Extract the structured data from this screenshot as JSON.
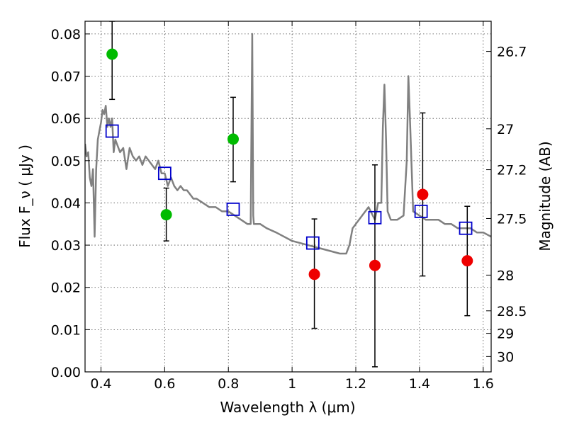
{
  "chart_data": {
    "type": "scatter",
    "xlabel": "Wavelength  λ (μm)",
    "ylabel": "Flux  F_ν ( μJy )",
    "ylabel_right": "Magnitude (AB)",
    "xlim": [
      0.35,
      1.625
    ],
    "ylim": [
      0.0,
      0.083
    ],
    "grid": true,
    "x_ticks": [
      0.4,
      0.6,
      0.8,
      1.0,
      1.2,
      1.4,
      1.6
    ],
    "x_tick_labels": [
      "0.4",
      "0.6",
      "0.8",
      "1",
      "1.2",
      "1.4",
      "1.6"
    ],
    "y_ticks": [
      0.0,
      0.01,
      0.02,
      0.03,
      0.04,
      0.05,
      0.06,
      0.07,
      0.08
    ],
    "y_tick_labels": [
      "0.00",
      "0.01",
      "0.02",
      "0.03",
      "0.04",
      "0.05",
      "0.06",
      "0.07",
      "0.08"
    ],
    "right_ticks": [
      {
        "label": "26.7",
        "mag": 26.7
      },
      {
        "label": "27",
        "mag": 27.0
      },
      {
        "label": "27.2",
        "mag": 27.2
      },
      {
        "label": "27.5",
        "mag": 27.5
      },
      {
        "label": "28",
        "mag": 28.0
      },
      {
        "label": "28.5",
        "mag": 28.5
      },
      {
        "label": "29",
        "mag": 29.0
      },
      {
        "label": "30",
        "mag": 30.0
      }
    ],
    "series": [
      {
        "kind": "line",
        "color": "#808080",
        "x": [
          0.35,
          0.355,
          0.36,
          0.365,
          0.37,
          0.375,
          0.38,
          0.385,
          0.39,
          0.395,
          0.4,
          0.405,
          0.41,
          0.415,
          0.42,
          0.425,
          0.43,
          0.435,
          0.44,
          0.445,
          0.45,
          0.46,
          0.47,
          0.48,
          0.49,
          0.5,
          0.51,
          0.52,
          0.53,
          0.54,
          0.55,
          0.56,
          0.57,
          0.58,
          0.59,
          0.6,
          0.61,
          0.62,
          0.63,
          0.64,
          0.65,
          0.66,
          0.67,
          0.68,
          0.69,
          0.7,
          0.72,
          0.74,
          0.76,
          0.78,
          0.8,
          0.82,
          0.84,
          0.86,
          0.87,
          0.875,
          0.878,
          0.88,
          0.885,
          0.9,
          0.92,
          0.95,
          1.0,
          1.05,
          1.1,
          1.15,
          1.17,
          1.18,
          1.19,
          1.2,
          1.22,
          1.24,
          1.26,
          1.27,
          1.28,
          1.285,
          1.29,
          1.295,
          1.3,
          1.31,
          1.33,
          1.35,
          1.36,
          1.365,
          1.37,
          1.38,
          1.4,
          1.42,
          1.44,
          1.46,
          1.48,
          1.5,
          1.52,
          1.54,
          1.56,
          1.58,
          1.6,
          1.625
        ],
        "y": [
          0.054,
          0.051,
          0.052,
          0.046,
          0.044,
          0.048,
          0.032,
          0.048,
          0.055,
          0.057,
          0.059,
          0.062,
          0.061,
          0.063,
          0.058,
          0.06,
          0.058,
          0.06,
          0.052,
          0.055,
          0.054,
          0.052,
          0.053,
          0.048,
          0.053,
          0.051,
          0.05,
          0.051,
          0.049,
          0.051,
          0.05,
          0.049,
          0.048,
          0.05,
          0.047,
          0.047,
          0.044,
          0.046,
          0.044,
          0.043,
          0.044,
          0.043,
          0.043,
          0.042,
          0.041,
          0.041,
          0.04,
          0.039,
          0.039,
          0.038,
          0.038,
          0.037,
          0.036,
          0.035,
          0.035,
          0.08,
          0.037,
          0.035,
          0.035,
          0.035,
          0.034,
          0.033,
          0.031,
          0.03,
          0.029,
          0.028,
          0.028,
          0.03,
          0.034,
          0.035,
          0.037,
          0.039,
          0.036,
          0.04,
          0.04,
          0.058,
          0.068,
          0.055,
          0.038,
          0.036,
          0.036,
          0.037,
          0.05,
          0.07,
          0.06,
          0.038,
          0.037,
          0.036,
          0.036,
          0.036,
          0.035,
          0.035,
          0.034,
          0.034,
          0.034,
          0.033,
          0.033,
          0.032
        ]
      },
      {
        "kind": "open-square",
        "color": "#0000cc",
        "x": [
          0.435,
          0.6,
          0.815,
          1.065,
          1.26,
          1.405,
          1.545
        ],
        "y": [
          0.057,
          0.047,
          0.0385,
          0.0305,
          0.0365,
          0.038,
          0.034
        ]
      },
      {
        "kind": "filled-circle",
        "color": "#00bb00",
        "x": [
          0.435,
          0.605,
          0.815
        ],
        "y": [
          0.0752,
          0.0372,
          0.0551
        ],
        "yerr_low": [
          0.0645,
          0.031,
          0.045
        ],
        "yerr_high": [
          0.083,
          0.0435,
          0.065
        ]
      },
      {
        "kind": "filled-circle",
        "color": "#ee0000",
        "x": [
          1.07,
          1.26,
          1.41,
          1.55
        ],
        "y": [
          0.0231,
          0.0252,
          0.042,
          0.0263
        ],
        "yerr_low": [
          0.0103,
          0.0012,
          0.0227,
          0.0133
        ],
        "yerr_high": [
          0.0362,
          0.049,
          0.0613,
          0.0392
        ]
      }
    ]
  }
}
